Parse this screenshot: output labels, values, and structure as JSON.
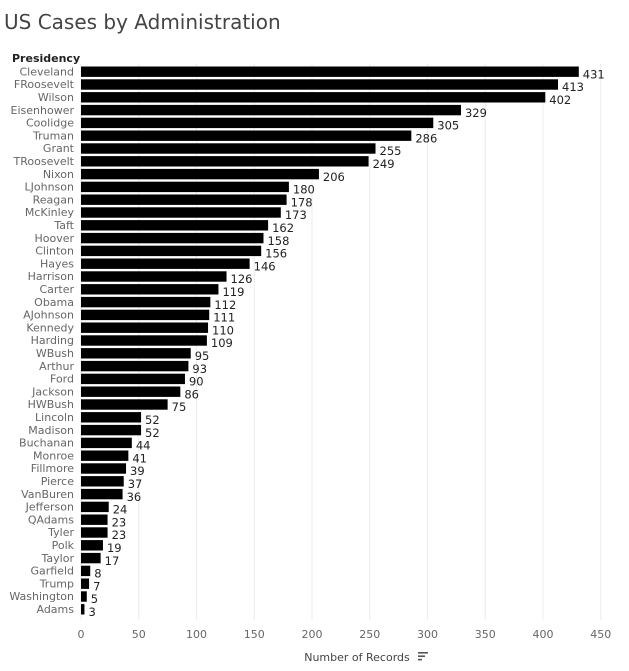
{
  "chart_data": {
    "type": "bar",
    "orientation": "horizontal",
    "title": "US Cases by Administration",
    "row_header": "Presidency",
    "xlabel": "Number of Records",
    "xlim": [
      0,
      460
    ],
    "xticks": [
      0,
      50,
      100,
      150,
      200,
      250,
      300,
      350,
      400,
      450
    ],
    "grid": true,
    "bar_color": "#000000",
    "sort": "descending",
    "sort_icon": "sort-descending-icon",
    "categories": [
      "Cleveland",
      "FRoosevelt",
      "Wilson",
      "Eisenhower",
      "Coolidge",
      "Truman",
      "Grant",
      "TRoosevelt",
      "Nixon",
      "LJohnson",
      "Reagan",
      "McKinley",
      "Taft",
      "Hoover",
      "Clinton",
      "Hayes",
      "Harrison",
      "Carter",
      "Obama",
      "AJohnson",
      "Kennedy",
      "Harding",
      "WBush",
      "Arthur",
      "Ford",
      "Jackson",
      "HWBush",
      "Lincoln",
      "Madison",
      "Buchanan",
      "Monroe",
      "Fillmore",
      "Pierce",
      "VanBuren",
      "Jefferson",
      "QAdams",
      "Tyler",
      "Polk",
      "Taylor",
      "Garfield",
      "Trump",
      "Washington",
      "Adams"
    ],
    "values": [
      431,
      413,
      402,
      329,
      305,
      286,
      255,
      249,
      206,
      180,
      178,
      173,
      162,
      158,
      156,
      146,
      126,
      119,
      112,
      111,
      110,
      109,
      95,
      93,
      90,
      86,
      75,
      52,
      52,
      44,
      41,
      39,
      37,
      36,
      24,
      23,
      23,
      19,
      17,
      8,
      7,
      5,
      3
    ]
  }
}
